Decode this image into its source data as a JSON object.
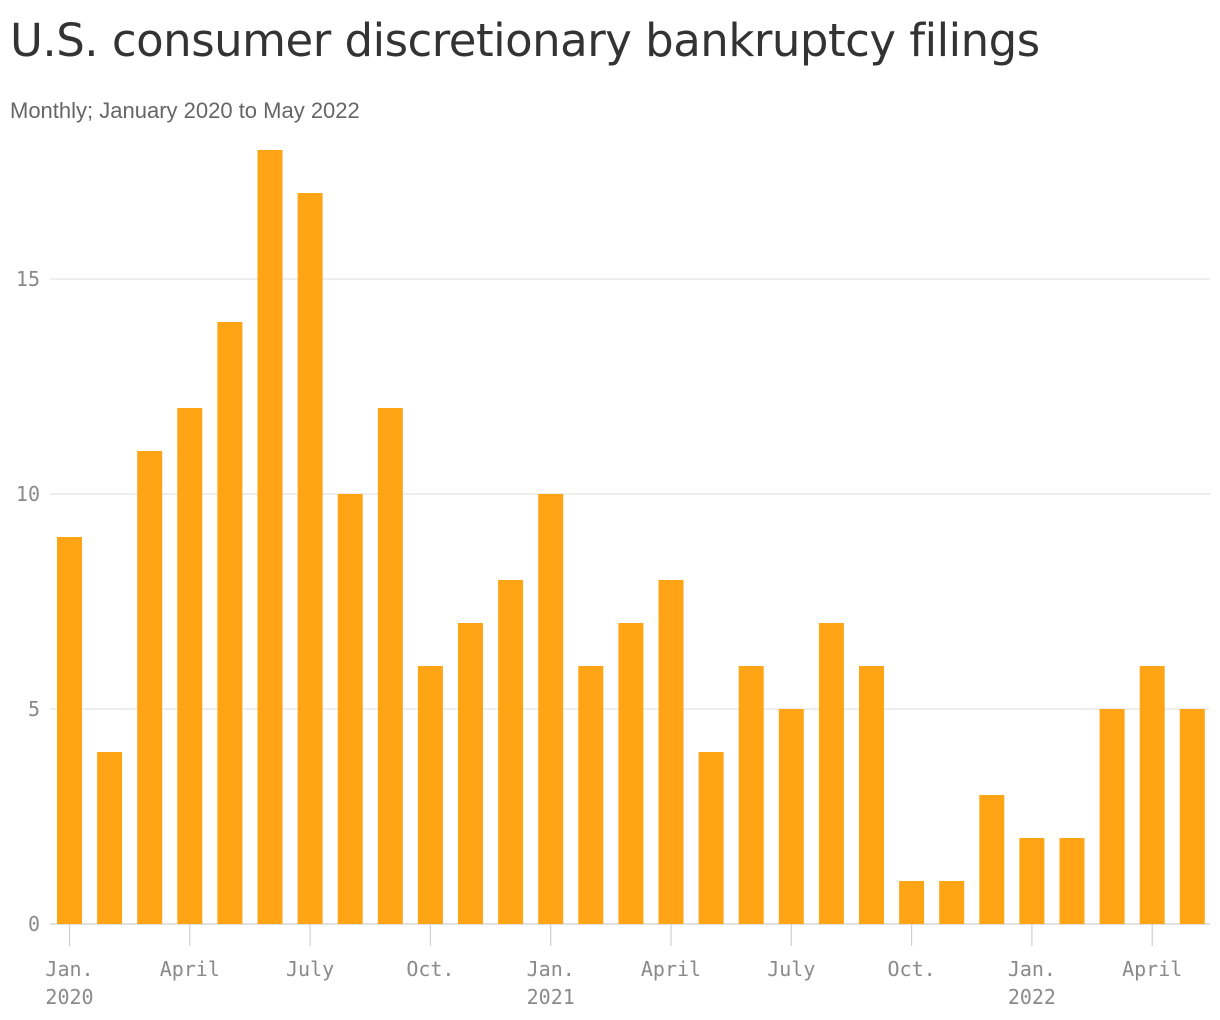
{
  "chart_data": {
    "type": "bar",
    "title": "U.S. consumer discretionary bankruptcy filings",
    "subtitle": "Monthly; January 2020 to May 2022",
    "xlabel": "",
    "ylabel": "",
    "ylim": [
      0,
      18
    ],
    "yticks": [
      0,
      5,
      10,
      15
    ],
    "grid": true,
    "bar_color": "#FFA515",
    "categories": [
      "2020-01",
      "2020-02",
      "2020-03",
      "2020-04",
      "2020-05",
      "2020-06",
      "2020-07",
      "2020-08",
      "2020-09",
      "2020-10",
      "2020-11",
      "2020-12",
      "2021-01",
      "2021-02",
      "2021-03",
      "2021-04",
      "2021-05",
      "2021-06",
      "2021-07",
      "2021-08",
      "2021-09",
      "2021-10",
      "2021-11",
      "2021-12",
      "2022-01",
      "2022-02",
      "2022-03",
      "2022-04",
      "2022-05"
    ],
    "values": [
      9,
      4,
      11,
      12,
      14,
      18,
      17,
      10,
      12,
      6,
      7,
      8,
      10,
      6,
      7,
      8,
      4,
      6,
      5,
      7,
      6,
      1,
      1,
      3,
      2,
      2,
      5,
      6,
      5
    ],
    "xticks": [
      {
        "index": 0,
        "lines": [
          "Jan.",
          "2020"
        ]
      },
      {
        "index": 3,
        "lines": [
          "April"
        ]
      },
      {
        "index": 6,
        "lines": [
          "July"
        ]
      },
      {
        "index": 9,
        "lines": [
          "Oct."
        ]
      },
      {
        "index": 12,
        "lines": [
          "Jan.",
          "2021"
        ]
      },
      {
        "index": 15,
        "lines": [
          "April"
        ]
      },
      {
        "index": 18,
        "lines": [
          "July"
        ]
      },
      {
        "index": 21,
        "lines": [
          "Oct."
        ]
      },
      {
        "index": 24,
        "lines": [
          "Jan.",
          "2022"
        ]
      },
      {
        "index": 27,
        "lines": [
          "April"
        ]
      }
    ]
  }
}
